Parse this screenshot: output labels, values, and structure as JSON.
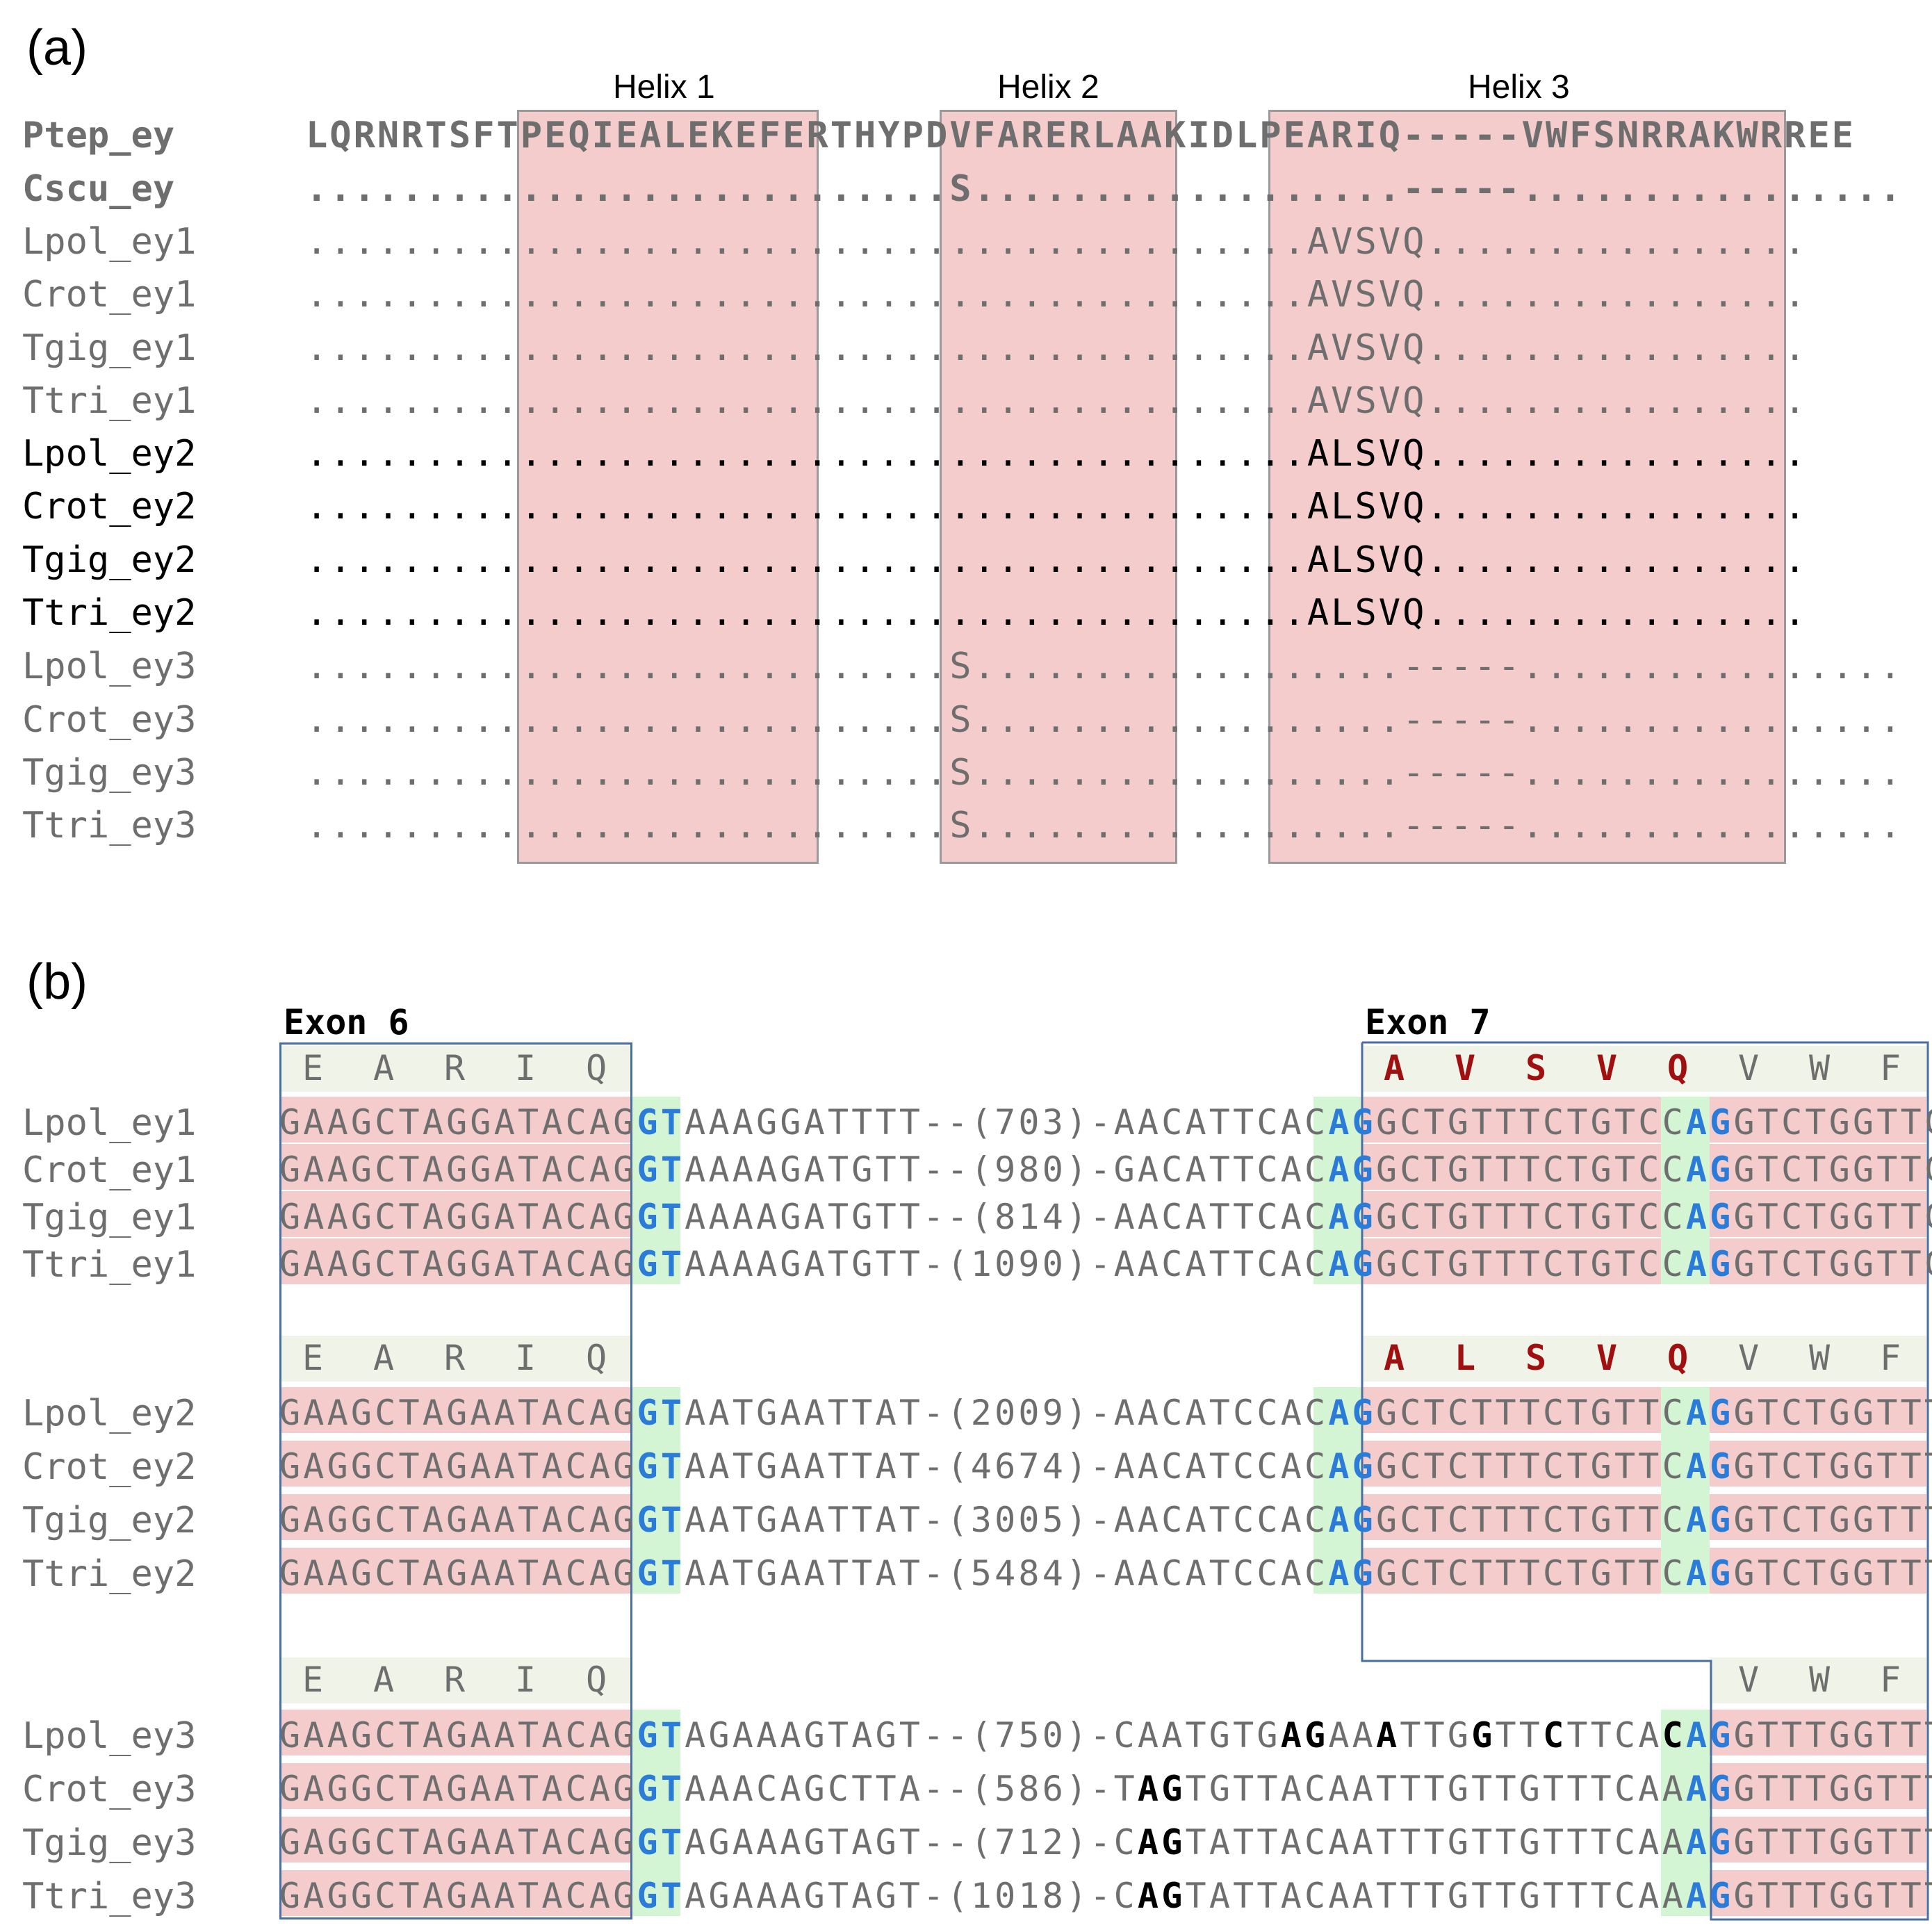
{
  "panel_a": {
    "label": "(a)",
    "helices": [
      "Helix 1",
      "Helix 2",
      "Helix 3"
    ],
    "rows": [
      {
        "name": "Ptep_ey",
        "seq": "LQRNRTSFTPEQIEALEKEFERTHYPDVFARERLAAKIDLPEARIQ-----VWFSNRRAKWRREE"
      },
      {
        "name": "Cscu_ey",
        "seq": "...........................S..................-----................"
      },
      {
        "name": "Lpol_ey1",
        "seq": "..........................................AVSVQ................"
      },
      {
        "name": "Crot_ey1",
        "seq": "..........................................AVSVQ................"
      },
      {
        "name": "Tgig_ey1",
        "seq": "..........................................AVSVQ................"
      },
      {
        "name": "Ttri_ey1",
        "seq": "..........................................AVSVQ................"
      },
      {
        "name": "Lpol_ey2",
        "seq": "..........................................ALSVQ................"
      },
      {
        "name": "Crot_ey2",
        "seq": "..........................................ALSVQ................"
      },
      {
        "name": "Tgig_ey2",
        "seq": "..........................................ALSVQ................"
      },
      {
        "name": "Ttri_ey2",
        "seq": "..........................................ALSVQ................"
      },
      {
        "name": "Lpol_ey3",
        "seq": "...........................S..................-----................"
      },
      {
        "name": "Crot_ey3",
        "seq": "...........................S..................-----................"
      },
      {
        "name": "Tgig_ey3",
        "seq": "...........................S..................-----................"
      },
      {
        "name": "Ttri_ey3",
        "seq": "...........................S..................-----................"
      }
    ]
  },
  "panel_b": {
    "label": "(b)",
    "exon6": "Exon 6",
    "exon7": "Exon 7",
    "group1": {
      "aa": [
        "E",
        "A",
        "R",
        "I",
        "Q",
        "A",
        "V",
        "S",
        "V",
        "Q",
        "V",
        "W",
        "F"
      ],
      "rows": [
        {
          "name": "Lpol_ey1",
          "p1": "GAAGCTAGGATACAG",
          "gt": "GT",
          "mid": "AAAGGATTTT--(703)-AACATTCAC",
          "ag": "AG",
          "p2": "GCTGTTTCTGTCC",
          "ag2": "AG",
          "p3": "GTCTGGTTC"
        },
        {
          "name": "Crot_ey1",
          "p1": "GAAGCTAGGATACAG",
          "gt": "GT",
          "mid": "AAAAGATGTT--(980)-GACATTCAC",
          "ag": "AG",
          "p2": "GCTGTTTCTGTCC",
          "ag2": "AG",
          "p3": "GTCTGGTTC"
        },
        {
          "name": "Tgig_ey1",
          "p1": "GAAGCTAGGATACAG",
          "gt": "GT",
          "mid": "AAAAGATGTT--(814)-AACATTCAC",
          "ag": "AG",
          "p2": "GCTGTTTCTGTCC",
          "ag2": "AG",
          "p3": "GTCTGGTTC"
        },
        {
          "name": "Ttri_ey1",
          "p1": "GAAGCTAGGATACAG",
          "gt": "GT",
          "mid": "AAAAGATGTT-(1090)-AACATTCAC",
          "ag": "AG",
          "p2": "GCTGTTTCTGTCC",
          "ag2": "AG",
          "p3": "GTCTGGTTC"
        }
      ]
    },
    "group2": {
      "aa": [
        "E",
        "A",
        "R",
        "I",
        "Q",
        "A",
        "L",
        "S",
        "V",
        "Q",
        "V",
        "W",
        "F"
      ],
      "rows": [
        {
          "name": "Lpol_ey2",
          "p1": "GAAGCTAGAATACAG",
          "gt": "GT",
          "mid": "AATGAATTAT-(2009)-AACATCCAC",
          "ag": "AG",
          "p2": "GCTCTTTCTGTTC",
          "ag2": "AG",
          "p3": "GTCTGGTTT"
        },
        {
          "name": "Crot_ey2",
          "p1": "GAGGCTAGAATACAG",
          "gt": "GT",
          "mid": "AATGAATTAT-(4674)-AACATCCAC",
          "ag": "AG",
          "p2": "GCTCTTTCTGTTC",
          "ag2": "AG",
          "p3": "GTCTGGTTT"
        },
        {
          "name": "Tgig_ey2",
          "p1": "GAGGCTAGAATACAG",
          "gt": "GT",
          "mid": "AATGAATTAT-(3005)-AACATCCAC",
          "ag": "AG",
          "p2": "GCTCTTTCTGTTC",
          "ag2": "AG",
          "p3": "GTCTGGTTT"
        },
        {
          "name": "Ttri_ey2",
          "p1": "GAAGCTAGAATACAG",
          "gt": "GT",
          "mid": "AATGAATTAT-(5484)-AACATCCAC",
          "ag": "AG",
          "p2": "GCTCTTTCTGTTC",
          "ag2": "AG",
          "p3": "GTCTGGTTT"
        }
      ]
    },
    "group3": {
      "aa": [
        "E",
        "A",
        "R",
        "I",
        "Q",
        "V",
        "W",
        "F"
      ],
      "rows": [
        {
          "name": "Lpol_ey3",
          "p1": "GAAGCTAGAATACAG",
          "gt": "GT",
          "mid": "AGAAAGTAGT--(750)-CAATGTG",
          "b1": "AG",
          "m2": "AA",
          "b2": "A",
          "m3": "TTG",
          "b3": "G",
          "m4": "TT",
          "b4": "C",
          "m5": "TTCA",
          "b5": "C",
          "ag": "AG",
          "p3": "GTTTGGTTT"
        },
        {
          "name": "Crot_ey3",
          "p1": "GAGGCTAGAATACAG",
          "gt": "GT",
          "mid": "AAACAGCTTA--(586)-T",
          "b1": "AG",
          "m2": "TGTTACAATTTGTTGTTTCAA",
          "ag": "AG",
          "p3": "GTTTGGTTT"
        },
        {
          "name": "Tgig_ey3",
          "p1": "GAGGCTAGAATACAG",
          "gt": "GT",
          "mid": "AGAAAGTAGT--(712)-C",
          "b1": "AG",
          "m2": "TATTACAATTTGTTGTTTCAA",
          "ag": "AG",
          "p3": "GTTTGGTTT"
        },
        {
          "name": "Ttri_ey3",
          "p1": "GAGGCTAGAATACAG",
          "gt": "GT",
          "mid": "AGAAAGTAGT-(1018)-C",
          "b1": "AG",
          "m2": "TATTACAATTTGTTGTTTCAA",
          "ag": "AG",
          "p3": "GTTTGGTTT"
        }
      ]
    }
  }
}
